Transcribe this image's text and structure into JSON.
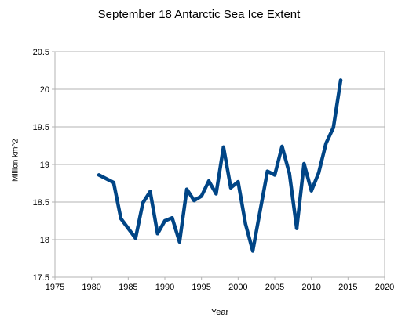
{
  "chart_data": {
    "type": "line",
    "title": "September 18 Antarctic Sea Ice Extent",
    "xlabel": "Year",
    "ylabel": "Million km^2",
    "xlim": [
      1975,
      2020
    ],
    "ylim": [
      17.5,
      20.5
    ],
    "xticks": [
      1975,
      1980,
      1985,
      1990,
      1995,
      2000,
      2005,
      2010,
      2015,
      2020
    ],
    "yticks": [
      17.5,
      18,
      18.5,
      19,
      19.5,
      20,
      20.5
    ],
    "ytick_labels": [
      "17.5",
      "18",
      "18.5",
      "19",
      "19.5",
      "20",
      "20.5"
    ],
    "grid": "horizontal",
    "legend": "none",
    "series": [
      {
        "color": "#004586",
        "x": [
          1981,
          1983,
          1984,
          1986,
          1987,
          1988,
          1989,
          1990,
          1991,
          1992,
          1993,
          1994,
          1995,
          1996,
          1997,
          1998,
          1999,
          2000,
          2001,
          2002,
          2003,
          2004,
          2005,
          2006,
          2007,
          2008,
          2009,
          2010,
          2011,
          2012,
          2013,
          2014
        ],
        "y": [
          18.86,
          18.76,
          18.28,
          18.02,
          18.49,
          18.64,
          18.08,
          18.25,
          18.29,
          17.97,
          18.67,
          18.52,
          18.58,
          18.78,
          18.61,
          19.23,
          18.69,
          18.77,
          18.21,
          17.85,
          18.38,
          18.91,
          18.86,
          19.24,
          18.88,
          18.15,
          19.01,
          18.65,
          18.89,
          19.28,
          19.49,
          20.12
        ]
      }
    ]
  }
}
